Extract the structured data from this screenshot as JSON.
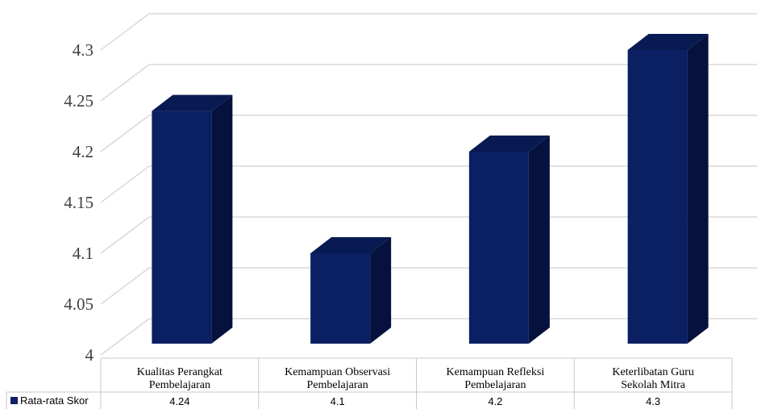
{
  "chart_data": {
    "type": "bar",
    "categories": [
      "Kualitas Perangkat Pembelajaran",
      "Kemampuan Observasi Pembelajaran",
      "Kemampuan Refleksi Pembelajaran",
      "Keterlibatan Guru Sekolah Mitra"
    ],
    "category_lines": [
      [
        "Kualitas Perangkat",
        "Pembelajaran"
      ],
      [
        "Kemampuan Observasi",
        "Pembelajaran"
      ],
      [
        "Kemampuan Refleksi",
        "Pembelajaran"
      ],
      [
        "Keterlibatan Guru",
        "Sekolah Mitra"
      ]
    ],
    "series": [
      {
        "name": "Rata-rata Skor",
        "values": [
          4.24,
          4.1,
          4.2,
          4.3
        ]
      }
    ],
    "value_labels": [
      "4.24",
      "4.1",
      "4.2",
      "4.3"
    ],
    "y_ticks": [
      "4",
      "4.05",
      "4.1",
      "4.15",
      "4.2",
      "4.25",
      "4.3"
    ],
    "ylim": [
      4,
      4.3
    ],
    "title": "",
    "xlabel": "",
    "ylabel": "",
    "grid": true,
    "legend": "data-table-left",
    "bar_style": "3d-column",
    "colors": {
      "bar_front": "#0b1f63",
      "bar_side": "#06123d",
      "bar_top": "#081a52",
      "grid": "#d9d9d9"
    }
  }
}
